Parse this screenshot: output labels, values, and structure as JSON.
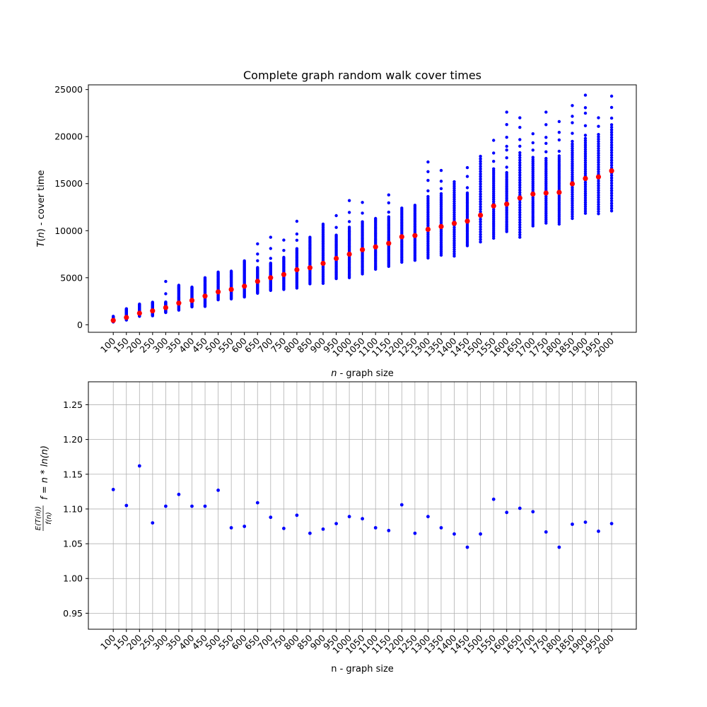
{
  "colors": {
    "scatter": "#0000ff",
    "mean": "#ff0000",
    "grid": "#b0b0b0",
    "axes": "#000000"
  },
  "chart_data": [
    {
      "type": "scatter",
      "title": "Complete graph random walk cover times",
      "xlabel": "$n$ - graph size",
      "ylabel": "$T(n)$ - cover time",
      "categories": [
        "100",
        "150",
        "200",
        "250",
        "300",
        "350",
        "400",
        "450",
        "500",
        "550",
        "600",
        "650",
        "700",
        "750",
        "800",
        "850",
        "900",
        "950",
        "1000",
        "1050",
        "1100",
        "1150",
        "1200",
        "1250",
        "1300",
        "1350",
        "1400",
        "1450",
        "1500",
        "1550",
        "1600",
        "1650",
        "1700",
        "1750",
        "1800",
        "1850",
        "1900",
        "1950",
        "2000"
      ],
      "ylim": [
        -800,
        25500
      ],
      "yticks": [
        0,
        5000,
        10000,
        15000,
        20000,
        25000
      ],
      "grid": false,
      "series": [
        {
          "role": "trials",
          "min": [
            300,
            500,
            900,
            950,
            1300,
            1550,
            1900,
            1950,
            2650,
            2750,
            2950,
            3350,
            3650,
            3750,
            3900,
            4350,
            4400,
            4900,
            5000,
            5400,
            5900,
            6200,
            6650,
            6850,
            7100,
            7400,
            7300,
            8400,
            8800,
            9200,
            9900,
            9300,
            10500,
            10800,
            10700,
            11300,
            11850,
            11800,
            12100
          ],
          "max": [
            900,
            1700,
            2200,
            2400,
            4600,
            4200,
            4000,
            5000,
            5600,
            5700,
            6800,
            8600,
            9300,
            9000,
            11000,
            9300,
            10700,
            11600,
            13200,
            13000,
            11300,
            13800,
            12400,
            12700,
            17300,
            16400,
            15200,
            16700,
            17900,
            19600,
            22600,
            22000,
            20300,
            22600,
            21600,
            23300,
            24400,
            22000,
            24300
          ],
          "outliers_high": [
            null,
            null,
            null,
            null,
            4600,
            null,
            null,
            null,
            null,
            null,
            null,
            8600,
            9300,
            9000,
            11000,
            null,
            null,
            11600,
            13200,
            13000,
            null,
            13800,
            null,
            null,
            17300,
            16400,
            null,
            16700,
            null,
            19600,
            22600,
            22000,
            20300,
            22600,
            21600,
            23300,
            24400,
            22000,
            24300
          ]
        },
        {
          "role": "mean",
          "values": [
            460,
            780,
            1230,
            1480,
            1820,
            2300,
            2590,
            3050,
            3500,
            3750,
            4100,
            4620,
            5000,
            5340,
            5850,
            6060,
            6530,
            7050,
            7500,
            7980,
            8280,
            8650,
            9350,
            9480,
            10140,
            10440,
            10780,
            11010,
            11640,
            12630,
            12820,
            13480,
            13890,
            14000,
            14070,
            14980,
            15550,
            15720,
            16360
          ]
        }
      ]
    },
    {
      "type": "scatter",
      "title": "",
      "xlabel": "n - graph size",
      "ylabel": "E(T(n)) / f(n)    f = n * ln(n)",
      "ylabel_fraction_numerator": "E(T(n))",
      "ylabel_fraction_denominator": "f(n)",
      "ylabel_suffix": "f = n * ln(n)",
      "categories": [
        "100",
        "150",
        "200",
        "250",
        "300",
        "350",
        "400",
        "450",
        "500",
        "550",
        "600",
        "650",
        "700",
        "750",
        "800",
        "850",
        "900",
        "950",
        "1000",
        "1050",
        "1100",
        "1150",
        "1200",
        "1250",
        "1300",
        "1350",
        "1400",
        "1450",
        "1500",
        "1550",
        "1600",
        "1650",
        "1700",
        "1750",
        "1800",
        "1850",
        "1900",
        "1950",
        "2000"
      ],
      "values": [
        1.128,
        1.105,
        1.162,
        1.08,
        1.104,
        1.121,
        1.104,
        1.104,
        1.127,
        1.073,
        1.075,
        1.109,
        1.088,
        1.072,
        1.091,
        1.065,
        1.071,
        1.079,
        1.089,
        1.086,
        1.073,
        1.069,
        1.106,
        1.065,
        1.089,
        1.073,
        1.064,
        1.045,
        1.064,
        1.114,
        1.095,
        1.101,
        1.096,
        1.067,
        1.045,
        1.078,
        1.081,
        1.068,
        1.079
      ],
      "ylim": [
        0.927,
        1.283
      ],
      "yticks": [
        "0.95",
        "1.00",
        "1.05",
        "1.10",
        "1.15",
        "1.20",
        "1.25"
      ],
      "grid": true
    }
  ]
}
